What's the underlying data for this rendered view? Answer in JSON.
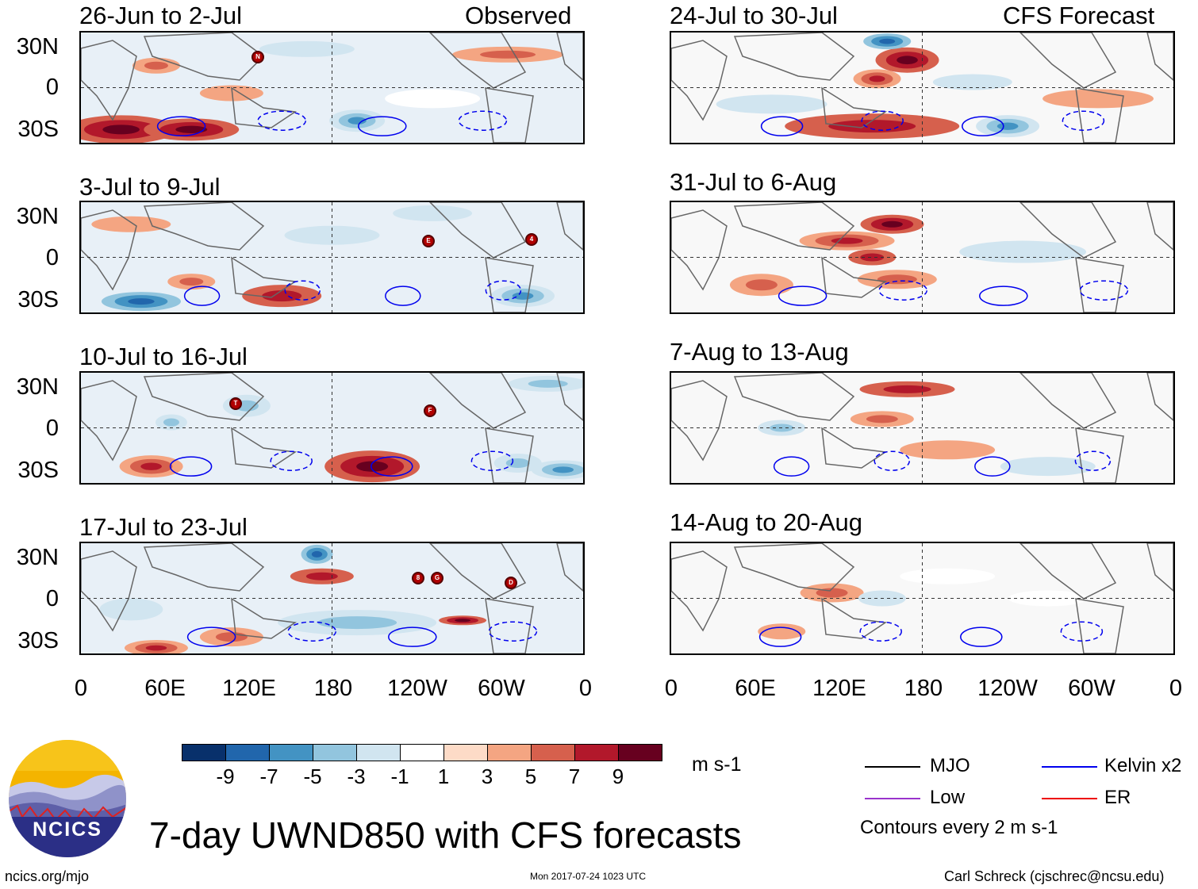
{
  "panels": [
    {
      "title": "26-Jun to 2-Jul",
      "tag": "Observed",
      "storms": [
        "N"
      ]
    },
    {
      "title": "24-Jul to 30-Jul",
      "tag": "CFS Forecast",
      "storms": []
    },
    {
      "title": "3-Jul to 9-Jul",
      "tag": "",
      "storms": [
        "E",
        "4"
      ]
    },
    {
      "title": "31-Jul to 6-Aug",
      "tag": "",
      "storms": []
    },
    {
      "title": "10-Jul to 16-Jul",
      "tag": "",
      "storms": [
        "T",
        "F"
      ]
    },
    {
      "title": "7-Aug to 13-Aug",
      "tag": "",
      "storms": []
    },
    {
      "title": "17-Jul to 23-Jul",
      "tag": "",
      "storms": [
        "8",
        "G",
        "D"
      ]
    },
    {
      "title": "14-Aug to 20-Aug",
      "tag": "",
      "storms": []
    }
  ],
  "lat_labels": [
    "30N",
    "0",
    "30S"
  ],
  "lon_labels": [
    "0",
    "60E",
    "120E",
    "180",
    "120W",
    "60W",
    "0"
  ],
  "colorbar": {
    "colors": [
      "#08306b",
      "#2166ac",
      "#4393c3",
      "#92c5de",
      "#d1e5f0",
      "#ffffff",
      "#fddbc7",
      "#f4a582",
      "#d6604d",
      "#b2182b",
      "#67001f"
    ],
    "labels": [
      "-9",
      "-7",
      "-5",
      "-3",
      "-1",
      "1",
      "3",
      "5",
      "7",
      "9"
    ],
    "units": "m s-1"
  },
  "legend": {
    "mjo": "MJO",
    "kelvin": "Kelvin x2",
    "low": "Low",
    "er": "ER",
    "note": "Contours every 2 m s-1",
    "colors": {
      "mjo": "#000000",
      "kelvin": "#0000ee",
      "low": "#9933cc",
      "er": "#ee0000"
    }
  },
  "logo": {
    "text": "NCICS"
  },
  "main_title": "7-day UWND850 with CFS forecasts",
  "footer": {
    "left": "ncics.org/mjo",
    "center": "Mon 2017-07-24 1023 UTC",
    "right": "Carl Schreck (cjschrec@ncsu.edu)"
  }
}
